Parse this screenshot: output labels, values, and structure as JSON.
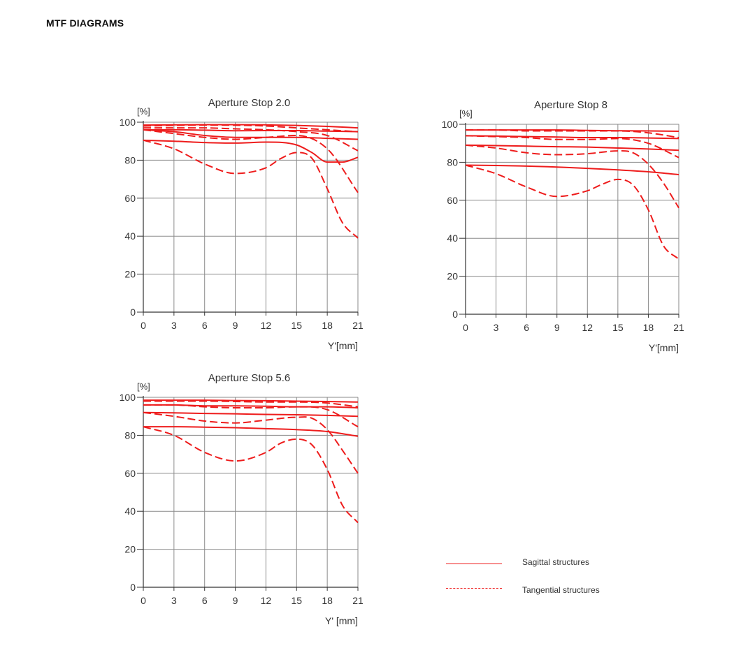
{
  "page": {
    "title": "MTF DIAGRAMS"
  },
  "colors": {
    "curve": "#ee1c1c",
    "grid": "#8a8a8a",
    "axis": "#333333"
  },
  "legend": {
    "sagittal": {
      "label": "Sagittal structures",
      "style": "solid"
    },
    "tangential": {
      "label": "Tangential structures",
      "style": "dashed"
    }
  },
  "chart_data": [
    {
      "type": "line",
      "title": "Aperture Stop 2.0",
      "ylabel": "[%]",
      "xlabel": "Y'[mm]",
      "xlim": [
        0,
        21
      ],
      "ylim": [
        0,
        100
      ],
      "xticks": [
        0,
        3,
        6,
        9,
        12,
        15,
        18,
        21
      ],
      "yticks": [
        0,
        20,
        40,
        60,
        80,
        100
      ],
      "grid": true,
      "series": [
        {
          "style": "solid",
          "x": [
            0,
            3,
            6,
            9,
            12,
            15,
            18,
            21
          ],
          "y": [
            98.5,
            98.6,
            98.7,
            98.7,
            98.6,
            98.3,
            97.8,
            97
          ]
        },
        {
          "style": "dashed",
          "x": [
            0,
            3,
            6,
            9,
            12,
            15,
            18,
            21
          ],
          "y": [
            98,
            98.3,
            98.5,
            98.4,
            98,
            97,
            96,
            95
          ]
        },
        {
          "style": "solid",
          "x": [
            0,
            3,
            6,
            9,
            12,
            15,
            18,
            21
          ],
          "y": [
            96,
            96,
            95.8,
            95.5,
            95.6,
            95.6,
            95.3,
            95
          ]
        },
        {
          "style": "dashed",
          "x": [
            0,
            3,
            6,
            9,
            12,
            15,
            18,
            21
          ],
          "y": [
            97,
            97,
            97,
            96.5,
            96,
            95,
            93,
            85
          ]
        },
        {
          "style": "solid",
          "x": [
            0,
            3,
            6,
            9,
            12,
            15,
            18,
            21
          ],
          "y": [
            96,
            95,
            93,
            92,
            92,
            92,
            91.5,
            91
          ]
        },
        {
          "style": "dashed",
          "x": [
            0,
            3,
            6,
            9,
            12,
            15,
            18,
            21
          ],
          "y": [
            96,
            94,
            92,
            91,
            92,
            93,
            86,
            63
          ]
        },
        {
          "style": "solid",
          "x": [
            0,
            3,
            6,
            9,
            12,
            15,
            16.5,
            18,
            19.5,
            21
          ],
          "y": [
            90.5,
            90,
            89.3,
            89,
            89.5,
            88,
            84,
            79,
            79,
            81.5
          ]
        },
        {
          "style": "dashed",
          "x": [
            0,
            3,
            6,
            9,
            12,
            13.5,
            15,
            16.5,
            18,
            19.5,
            21
          ],
          "y": [
            90.5,
            86,
            78,
            73,
            76,
            81,
            84,
            81,
            65,
            47,
            39
          ]
        }
      ]
    },
    {
      "type": "line",
      "title": "Aperture Stop 8",
      "ylabel": "[%]",
      "xlabel": "Y'[mm]",
      "xlim": [
        0,
        21
      ],
      "ylim": [
        0,
        100
      ],
      "xticks": [
        0,
        3,
        6,
        9,
        12,
        15,
        18,
        21
      ],
      "yticks": [
        0,
        20,
        40,
        60,
        80,
        100
      ],
      "grid": true,
      "series": [
        {
          "style": "solid",
          "x": [
            0,
            3,
            6,
            9,
            12,
            15,
            18,
            21
          ],
          "y": [
            97,
            97,
            97,
            97,
            96.8,
            96.6,
            96.5,
            96.3
          ]
        },
        {
          "style": "dashed",
          "x": [
            0,
            3,
            6,
            9,
            12,
            15,
            18,
            21
          ],
          "y": [
            97,
            97,
            96.5,
            96.5,
            96.5,
            96.5,
            95.5,
            93
          ]
        },
        {
          "style": "solid",
          "x": [
            0,
            3,
            6,
            9,
            12,
            15,
            18,
            21
          ],
          "y": [
            94,
            93.8,
            93.5,
            93.3,
            93,
            93,
            92.8,
            92.5
          ]
        },
        {
          "style": "dashed",
          "x": [
            0,
            3,
            6,
            9,
            12,
            15,
            18,
            21
          ],
          "y": [
            94,
            93.5,
            93,
            92,
            92,
            92.5,
            90,
            82.5
          ]
        },
        {
          "style": "solid",
          "x": [
            0,
            3,
            6,
            9,
            12,
            15,
            18,
            21
          ],
          "y": [
            89,
            88.8,
            88.5,
            88.2,
            88,
            87.5,
            87,
            86.3
          ]
        },
        {
          "style": "dashed",
          "x": [
            0,
            3,
            6,
            9,
            12,
            15,
            16.5,
            18,
            19.5,
            21
          ],
          "y": [
            89,
            87.5,
            85,
            84,
            84.5,
            86,
            85,
            79,
            69,
            56
          ]
        },
        {
          "style": "solid",
          "x": [
            0,
            3,
            6,
            9,
            12,
            15,
            18,
            21
          ],
          "y": [
            78.5,
            78.3,
            78,
            77.5,
            76.8,
            76,
            75,
            73.5
          ]
        },
        {
          "style": "dashed",
          "x": [
            0,
            3,
            6,
            9,
            12,
            13.5,
            15,
            16.5,
            18,
            19.5,
            21
          ],
          "y": [
            78.5,
            74,
            67,
            62,
            65,
            68.5,
            71,
            68,
            55,
            36,
            29
          ]
        }
      ]
    },
    {
      "type": "line",
      "title": "Aperture Stop 5.6",
      "ylabel": "[%]",
      "xlabel": "Y' [mm]",
      "xlim": [
        0,
        21
      ],
      "ylim": [
        0,
        100
      ],
      "xticks": [
        0,
        3,
        6,
        9,
        12,
        15,
        18,
        21
      ],
      "yticks": [
        0,
        20,
        40,
        60,
        80,
        100
      ],
      "grid": true,
      "series": [
        {
          "style": "solid",
          "x": [
            0,
            3,
            6,
            9,
            12,
            15,
            18,
            21
          ],
          "y": [
            98.5,
            98.5,
            98.5,
            98.3,
            98.2,
            98,
            97.8,
            97.5
          ]
        },
        {
          "style": "dashed",
          "x": [
            0,
            3,
            6,
            9,
            12,
            15,
            18,
            21
          ],
          "y": [
            98,
            98,
            98,
            97.8,
            97.5,
            97.5,
            97,
            95
          ]
        },
        {
          "style": "solid",
          "x": [
            0,
            3,
            6,
            9,
            12,
            15,
            18,
            21
          ],
          "y": [
            96,
            96,
            95.5,
            95.5,
            95.3,
            95,
            95,
            94.5
          ]
        },
        {
          "style": "dashed",
          "x": [
            0,
            3,
            6,
            9,
            12,
            15,
            18,
            21
          ],
          "y": [
            96,
            96,
            95,
            94.5,
            94.5,
            95,
            93.5,
            84.5
          ]
        },
        {
          "style": "solid",
          "x": [
            0,
            3,
            6,
            9,
            12,
            15,
            18,
            21
          ],
          "y": [
            92,
            91.8,
            91.5,
            91.3,
            91,
            90.8,
            90.5,
            90
          ]
        },
        {
          "style": "dashed",
          "x": [
            0,
            3,
            6,
            9,
            12,
            15,
            16.5,
            18,
            19.5,
            21
          ],
          "y": [
            92,
            90,
            87.5,
            86.5,
            88,
            89.5,
            89,
            83,
            72,
            60
          ]
        },
        {
          "style": "solid",
          "x": [
            0,
            3,
            6,
            9,
            12,
            15,
            18,
            21
          ],
          "y": [
            84.5,
            84.5,
            84.3,
            84,
            83.5,
            83,
            82,
            79.5
          ]
        },
        {
          "style": "dashed",
          "x": [
            0,
            3,
            6,
            9,
            12,
            13.5,
            15,
            16.5,
            18,
            19.5,
            21
          ],
          "y": [
            84.5,
            80,
            71,
            66.5,
            71,
            76,
            78,
            75,
            62,
            43,
            34
          ]
        }
      ]
    }
  ]
}
